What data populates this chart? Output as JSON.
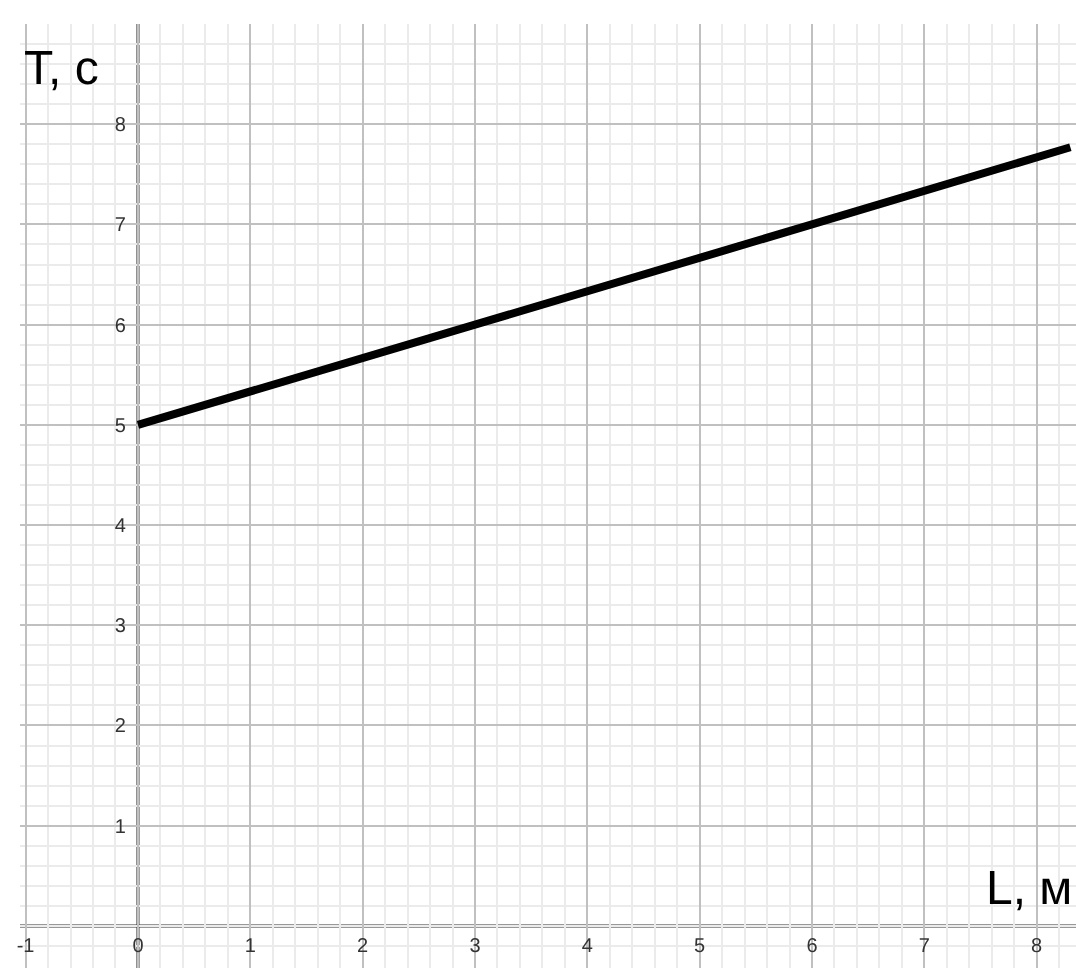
{
  "chart_data": {
    "type": "line",
    "xlabel": "L, м",
    "ylabel": "T, с",
    "x": [
      0,
      3,
      6,
      8.3
    ],
    "series": [
      {
        "color": "#000000",
        "values": [
          5,
          6,
          7,
          7.77
        ]
      }
    ],
    "xlim": [
      -1.05,
      8.35
    ],
    "ylim": [
      -0.42,
      9.0
    ],
    "xticks": [
      -1,
      0,
      1,
      2,
      3,
      4,
      5,
      6,
      7,
      8
    ],
    "yticks": [
      1,
      2,
      3,
      4,
      5,
      6,
      7,
      8
    ],
    "grid": true,
    "marker": "none",
    "line_style": "solid"
  }
}
